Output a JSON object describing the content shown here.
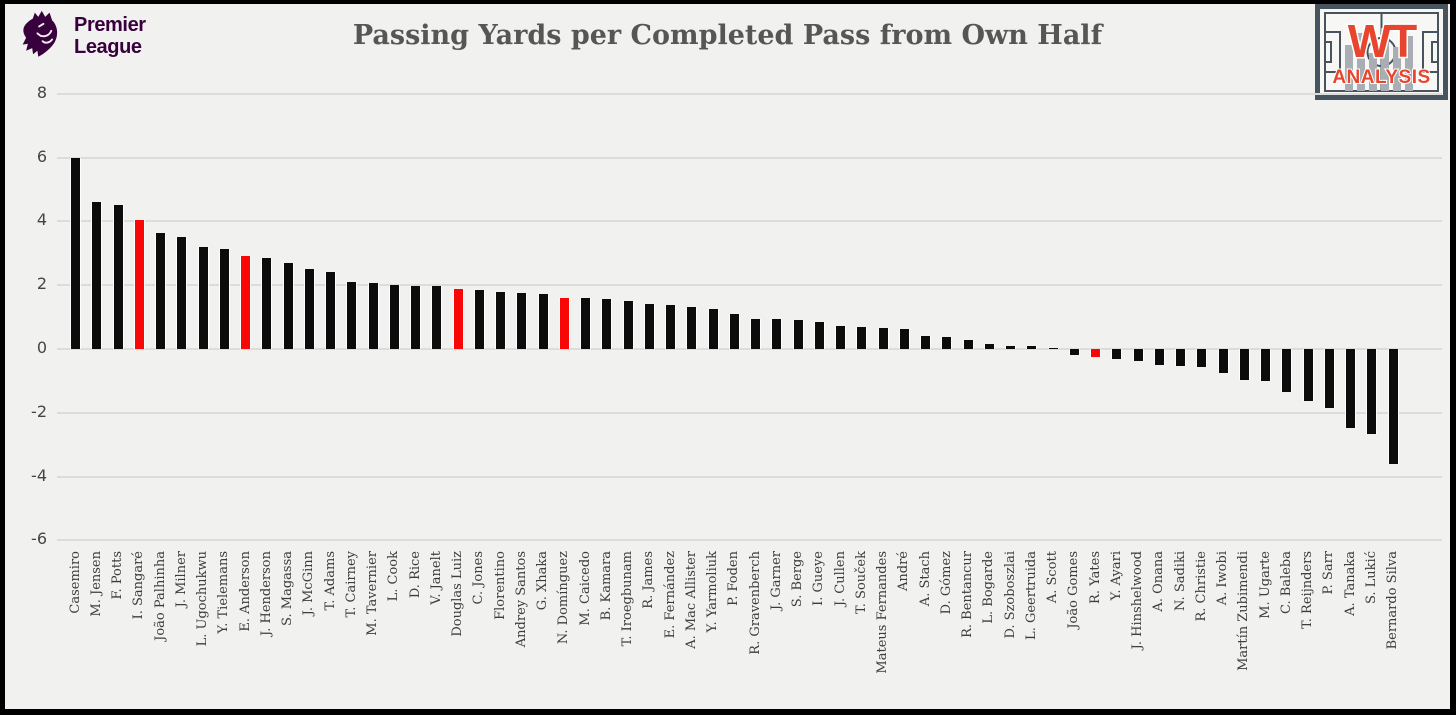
{
  "branding": {
    "premier_league": {
      "line1": "Premier",
      "line2": "League",
      "color": "#38003c"
    },
    "wt_analysis": {
      "line1": "WT",
      "line2": "ANALYSIS",
      "accent": "#e8452f",
      "pitch_line_color": "#47545e",
      "pitch_background": "#f7f7f5",
      "bar_silhouette_color": "#a8aeb4"
    }
  },
  "title": "Passing Yards per Completed Pass from Own Half",
  "chart_data": {
    "type": "bar",
    "title": "Passing Yards per Completed Pass from Own Half",
    "xlabel": "",
    "ylabel": "",
    "ylim": [
      -6,
      8
    ],
    "yticks": [
      8,
      6,
      4,
      2,
      0,
      -2,
      -4,
      -6
    ],
    "grid": true,
    "legend": "none",
    "bar_color": "#0c0c0c",
    "highlight_color": "#f90606",
    "highlight_indices": [
      3,
      8,
      18,
      23,
      48
    ],
    "categories": [
      "Casemiro",
      "M. Jensen",
      "F. Potts",
      "I. Sangaré",
      "João Palhinha",
      "J. Milner",
      "L. Ugochukwu",
      "Y. Tielemans",
      "E. Anderson",
      "J. Henderson",
      "S. Magassa",
      "J. McGinn",
      "T. Adams",
      "T. Cairney",
      "M. Tavernier",
      "L. Cook",
      "D. Rice",
      "V. Janelt",
      "Douglas Luiz",
      "C. Jones",
      "Florentino",
      "Andrey Santos",
      "G. Xhaka",
      "N. Domínguez",
      "M. Caicedo",
      "B. Kamara",
      "T. Iroegbunam",
      "R. James",
      "E. Fernández",
      "A. Mac Allister",
      "Y. Yarmoliuk",
      "P. Foden",
      "R. Gravenberch",
      "J. Garner",
      "S. Berge",
      "I. Gueye",
      "J. Cullen",
      "T. Souček",
      "Mateus Fernandes",
      "André",
      "A. Stach",
      "D. Gómez",
      "R. Bentancur",
      "L. Bogarde",
      "D. Szoboszlai",
      "L. Geertruida",
      "A. Scott",
      "João Gomes",
      "R. Yates",
      "Y. Ayari",
      "J. Hinshelwood",
      "A. Onana",
      "N. Sadiki",
      "R. Christie",
      "A. Iwobi",
      "Martín Zubimendi",
      "M. Ugarte",
      "C. Baleba",
      "T. Reijnders",
      "P. Sarr",
      "A. Tanaka",
      "S. Lukić",
      "Bernardo Silva"
    ],
    "values": [
      5.98,
      4.6,
      4.5,
      4.05,
      3.65,
      3.5,
      3.2,
      3.15,
      2.92,
      2.85,
      2.7,
      2.52,
      2.42,
      2.1,
      2.06,
      2.02,
      1.99,
      1.96,
      1.89,
      1.86,
      1.79,
      1.76,
      1.73,
      1.61,
      1.59,
      1.56,
      1.51,
      1.41,
      1.39,
      1.32,
      1.25,
      1.11,
      0.95,
      0.94,
      0.92,
      0.86,
      0.71,
      0.69,
      0.67,
      0.64,
      0.4,
      0.39,
      0.28,
      0.15,
      0.09,
      0.08,
      0.02,
      -0.2,
      -0.24,
      -0.32,
      -0.37,
      -0.49,
      -0.53,
      -0.57,
      -0.74,
      -0.98,
      -1.0,
      -1.35,
      -1.63,
      -1.86,
      -2.47,
      -2.67,
      -3.6
    ]
  },
  "colors": {
    "background": "#f1f1ef",
    "border": "#000000",
    "gridline": "#dcdcda",
    "title_text": "#565656",
    "axis_text": "#454545",
    "label_text": "#3d3d3d"
  }
}
